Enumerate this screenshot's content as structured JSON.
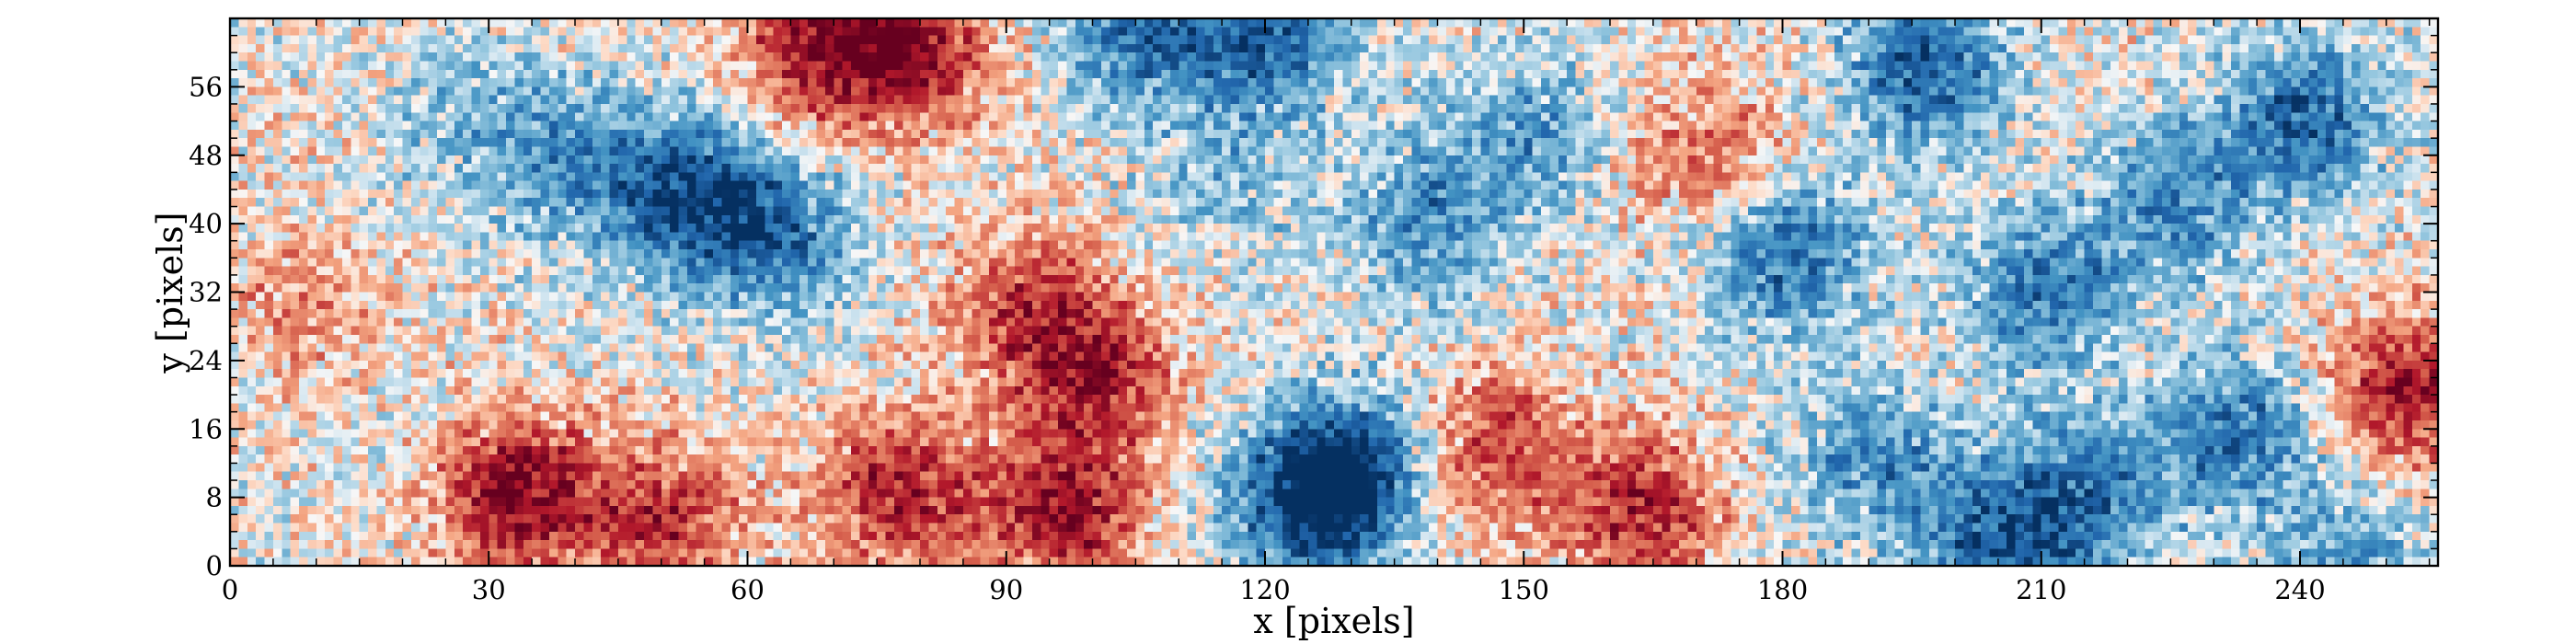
{
  "chart_data": {
    "type": "heatmap",
    "title": "",
    "xlabel": "x [pixels]",
    "ylabel": "y [pixels]",
    "xlim": [
      0,
      256
    ],
    "ylim": [
      0,
      64
    ],
    "grid": false,
    "colormap": "RdBu_r",
    "colors": {
      "low": "#2166ac",
      "mid": "#f7f7f7",
      "high": "#b2182b"
    },
    "x_ticks": [
      0,
      30,
      60,
      90,
      120,
      150,
      180,
      210,
      240
    ],
    "x_tick_labels": [
      "0",
      "30",
      "60",
      "90",
      "120",
      "150",
      "180",
      "210",
      "240"
    ],
    "y_ticks": [
      0,
      8,
      16,
      24,
      32,
      40,
      48,
      56
    ],
    "y_tick_labels": [
      "0",
      "8",
      "16",
      "24",
      "32",
      "40",
      "48",
      "56"
    ],
    "grid_size": {
      "nx": 256,
      "ny": 64
    },
    "value_range": [
      -1,
      1
    ],
    "features": [
      {
        "x": 33,
        "y": 8,
        "value": 1.0
      },
      {
        "x": 50,
        "y": 5,
        "value": 0.7
      },
      {
        "x": 68,
        "y": 60,
        "value": 0.85
      },
      {
        "x": 79,
        "y": 60,
        "value": 0.8
      },
      {
        "x": 77,
        "y": 8,
        "value": 0.8
      },
      {
        "x": 96,
        "y": 6,
        "value": 0.9
      },
      {
        "x": 92,
        "y": 30,
        "value": 0.6
      },
      {
        "x": 100,
        "y": 22,
        "value": 0.7
      },
      {
        "x": 146,
        "y": 13,
        "value": 0.65
      },
      {
        "x": 163,
        "y": 6,
        "value": 0.8
      },
      {
        "x": 171,
        "y": 48,
        "value": 0.5
      },
      {
        "x": 252,
        "y": 20,
        "value": 0.85
      },
      {
        "x": 8,
        "y": 30,
        "value": 0.35
      },
      {
        "x": 125,
        "y": 7,
        "value": -1.0
      },
      {
        "x": 130,
        "y": 11,
        "value": -0.7
      },
      {
        "x": 53,
        "y": 43,
        "value": -0.85
      },
      {
        "x": 40,
        "y": 46,
        "value": -0.5
      },
      {
        "x": 63,
        "y": 38,
        "value": -0.65
      },
      {
        "x": 105,
        "y": 62,
        "value": -0.7
      },
      {
        "x": 120,
        "y": 62,
        "value": -0.8
      },
      {
        "x": 138,
        "y": 40,
        "value": -0.55
      },
      {
        "x": 150,
        "y": 50,
        "value": -0.5
      },
      {
        "x": 180,
        "y": 36,
        "value": -0.75
      },
      {
        "x": 196,
        "y": 58,
        "value": -0.85
      },
      {
        "x": 210,
        "y": 32,
        "value": -0.7
      },
      {
        "x": 225,
        "y": 42,
        "value": -0.6
      },
      {
        "x": 240,
        "y": 52,
        "value": -0.75
      },
      {
        "x": 232,
        "y": 15,
        "value": -0.7
      },
      {
        "x": 215,
        "y": 8,
        "value": -0.65
      },
      {
        "x": 190,
        "y": 12,
        "value": -0.55
      },
      {
        "x": 204,
        "y": 2,
        "value": -0.75
      },
      {
        "x": 245,
        "y": 0,
        "value": -0.5
      },
      {
        "x": 28,
        "y": 52,
        "value": -0.35
      },
      {
        "x": 115,
        "y": 45,
        "value": -0.3
      }
    ]
  }
}
